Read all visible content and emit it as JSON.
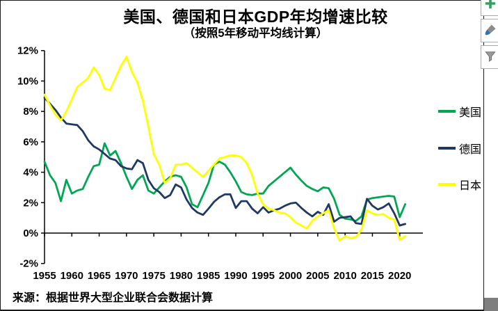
{
  "chart_data": {
    "type": "line",
    "title": "美国、德国和日本GDP年均增速比较",
    "subtitle": "（按照5年移动平均线计算）",
    "source": "来源：根据世界大型企业联合会数据计算",
    "xlabel": "",
    "ylabel": "",
    "ylim": [
      -2,
      12
    ],
    "grid": false,
    "legend_position": "right",
    "x": [
      1955,
      1956,
      1957,
      1958,
      1959,
      1960,
      1961,
      1962,
      1963,
      1964,
      1965,
      1966,
      1967,
      1968,
      1969,
      1970,
      1971,
      1972,
      1973,
      1974,
      1975,
      1976,
      1977,
      1978,
      1979,
      1980,
      1981,
      1982,
      1983,
      1984,
      1985,
      1986,
      1987,
      1988,
      1989,
      1990,
      1991,
      1992,
      1993,
      1994,
      1995,
      1996,
      1997,
      1998,
      1999,
      2000,
      2001,
      2002,
      2003,
      2004,
      2005,
      2006,
      2007,
      2008,
      2009,
      2010,
      2011,
      2012,
      2013,
      2014,
      2015,
      2016,
      2017,
      2018,
      2019,
      2020,
      2021
    ],
    "x_ticks": [
      1955,
      1960,
      1965,
      1970,
      1975,
      1980,
      1985,
      1990,
      1995,
      2000,
      2005,
      2010,
      2015,
      2020
    ],
    "y_ticks": [
      {
        "label": "12%",
        "value": 12
      },
      {
        "label": "10%",
        "value": 10
      },
      {
        "label": "8%",
        "value": 8
      },
      {
        "label": "6%",
        "value": 6
      },
      {
        "label": "4%",
        "value": 4
      },
      {
        "label": "2%",
        "value": 2
      },
      {
        "label": "0%",
        "value": 0
      },
      {
        "label": "-2%",
        "value": -2
      }
    ],
    "series": [
      {
        "name": "美国",
        "color": "#00A651",
        "values": [
          4.7,
          3.8,
          3.3,
          2.1,
          3.5,
          2.6,
          2.8,
          2.9,
          3.7,
          4.4,
          4.5,
          5.9,
          5.1,
          5.4,
          4.6,
          3.7,
          2.9,
          3.5,
          3.8,
          2.8,
          2.6,
          3.0,
          3.4,
          3.7,
          3.8,
          3.7,
          3.0,
          1.9,
          1.7,
          2.5,
          3.3,
          4.5,
          4.7,
          4.5,
          4.0,
          3.4,
          2.7,
          2.55,
          2.5,
          2.6,
          2.6,
          3.1,
          3.4,
          3.7,
          4.0,
          4.3,
          3.85,
          3.45,
          3.1,
          2.9,
          2.75,
          3.0,
          2.95,
          2.25,
          1.2,
          0.95,
          0.9,
          0.8,
          1.1,
          2.2,
          2.3,
          2.35,
          2.4,
          2.45,
          2.4,
          1.05,
          1.9
        ]
      },
      {
        "name": "德国",
        "color": "#1F3864",
        "values": [
          8.9,
          8.5,
          8.1,
          7.6,
          7.2,
          7.15,
          7.1,
          6.7,
          6.1,
          5.7,
          5.5,
          5.2,
          4.9,
          4.8,
          4.4,
          4.25,
          4.2,
          4.8,
          4.6,
          3.5,
          2.95,
          2.7,
          2.3,
          2.5,
          3.2,
          3.0,
          2.2,
          1.65,
          1.35,
          1.2,
          1.6,
          2.05,
          2.35,
          2.55,
          2.55,
          1.65,
          2.1,
          2.1,
          1.6,
          1.3,
          1.7,
          1.35,
          1.5,
          1.6,
          1.8,
          1.95,
          2.0,
          1.65,
          1.35,
          1.1,
          1.4,
          1.2,
          1.9,
          0.75,
          1.0,
          1.05,
          1.1,
          0.65,
          0.6,
          2.25,
          1.8,
          1.55,
          1.7,
          1.95,
          1.3,
          0.5,
          0.6
        ]
      },
      {
        "name": "日本",
        "color": "#FFFF00",
        "values": [
          9.1,
          8.4,
          7.8,
          7.4,
          8.0,
          8.8,
          9.6,
          9.9,
          10.2,
          10.9,
          10.4,
          9.5,
          9.4,
          10.2,
          11.0,
          11.6,
          10.6,
          9.9,
          8.7,
          7.0,
          5.2,
          4.5,
          3.3,
          3.6,
          4.5,
          4.5,
          4.6,
          4.3,
          4.0,
          3.7,
          4.1,
          4.5,
          4.9,
          5.0,
          5.1,
          5.1,
          5.0,
          4.6,
          3.8,
          2.6,
          1.9,
          1.6,
          1.5,
          1.35,
          1.3,
          1.05,
          0.7,
          0.5,
          0.3,
          0.8,
          1.1,
          1.3,
          1.5,
          0.3,
          -0.5,
          -0.2,
          -0.35,
          -0.25,
          0.2,
          1.5,
          1.3,
          1.2,
          1.25,
          1.0,
          0.9,
          -0.45,
          -0.2
        ]
      }
    ]
  },
  "toolbar": {
    "buttons": [
      {
        "id": "chart-elements",
        "icon": "plus-icon",
        "accent": "#33A05F"
      },
      {
        "id": "chart-styles",
        "icon": "paintbrush-icon",
        "accent": "#2E75B6"
      },
      {
        "id": "chart-filters",
        "icon": "funnel-icon",
        "accent": "#8C8C8C"
      }
    ]
  }
}
